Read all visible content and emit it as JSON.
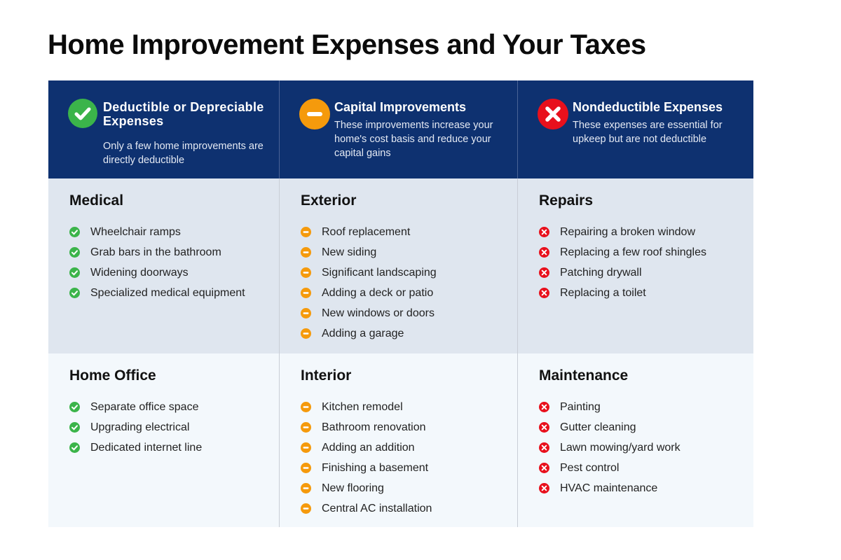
{
  "title": "Home Improvement Expenses and Your Taxes",
  "colors": {
    "header_bg": "#0e3170",
    "deductible": "#3bb44a",
    "capital": "#f59a0c",
    "nondeductible": "#e8101c",
    "row1_bg": "#dfe6ef",
    "row2_bg": "#f3f8fc"
  },
  "columns": [
    {
      "icon": "check-circle-icon",
      "title": "Deductible or Depreciable Expenses",
      "description": "Only a few home improvements are directly deductible",
      "sections": [
        {
          "name": "Medical",
          "items": [
            "Wheelchair ramps",
            "Grab bars in the bathroom",
            "Widening doorways",
            "Specialized medical equipment"
          ]
        },
        {
          "name": "Home Office",
          "items": [
            "Separate office space",
            "Upgrading electrical",
            "Dedicated internet line"
          ]
        }
      ]
    },
    {
      "icon": "minus-circle-icon",
      "title": "Capital Improvements",
      "description": "These improvements increase your home's cost basis and reduce your capital gains",
      "sections": [
        {
          "name": "Exterior",
          "items": [
            "Roof replacement",
            "New siding",
            "Significant landscaping",
            "Adding a deck or patio",
            "New windows or doors",
            "Adding a garage"
          ]
        },
        {
          "name": "Interior",
          "items": [
            "Kitchen remodel",
            "Bathroom renovation",
            "Adding an addition",
            "Finishing a basement",
            "New flooring",
            "Central AC installation"
          ]
        }
      ]
    },
    {
      "icon": "x-circle-icon",
      "title": "Nondeductible Expenses",
      "description": "These expenses are essential for upkeep but are not deductible",
      "sections": [
        {
          "name": "Repairs",
          "items": [
            "Repairing a broken window",
            "Replacing a few roof shingles",
            "Patching drywall",
            "Replacing a toilet"
          ]
        },
        {
          "name": "Maintenance",
          "items": [
            "Painting",
            "Gutter cleaning",
            "Lawn mowing/yard work",
            "Pest control",
            "HVAC maintenance"
          ]
        }
      ]
    }
  ]
}
